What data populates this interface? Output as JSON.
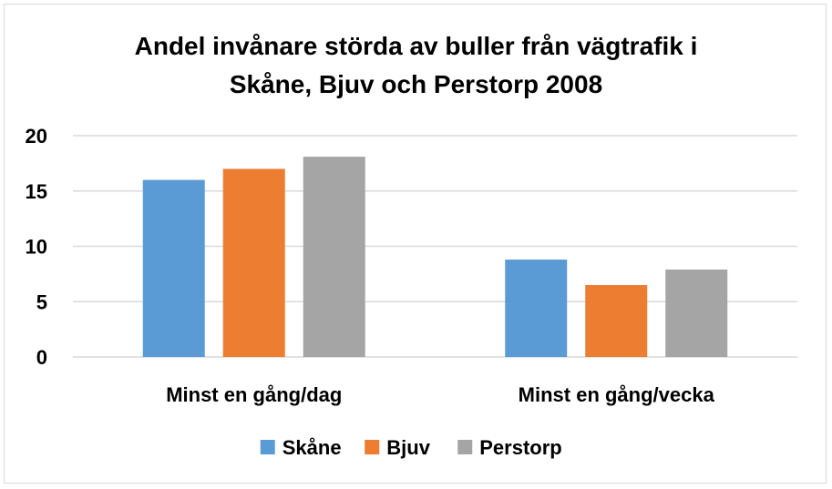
{
  "chart_data": {
    "type": "bar",
    "title_lines": [
      "Andel invånare störda av buller från vägtrafik i",
      "Skåne, Bjuv och Perstorp 2008"
    ],
    "categories": [
      "Minst en gång/dag",
      "Minst en gång/vecka"
    ],
    "series": [
      {
        "name": "Skåne",
        "values": [
          16,
          8.8
        ],
        "color": "#5b9bd5"
      },
      {
        "name": "Bjuv",
        "values": [
          17,
          6.5
        ],
        "color": "#ed7d31"
      },
      {
        "name": "Perstorp",
        "values": [
          18.1,
          7.9
        ],
        "color": "#a5a5a5"
      }
    ],
    "yticks": [
      0,
      5,
      10,
      15,
      20
    ],
    "ylim": [
      0,
      20
    ],
    "grid": true,
    "legend_position": "bottom"
  }
}
